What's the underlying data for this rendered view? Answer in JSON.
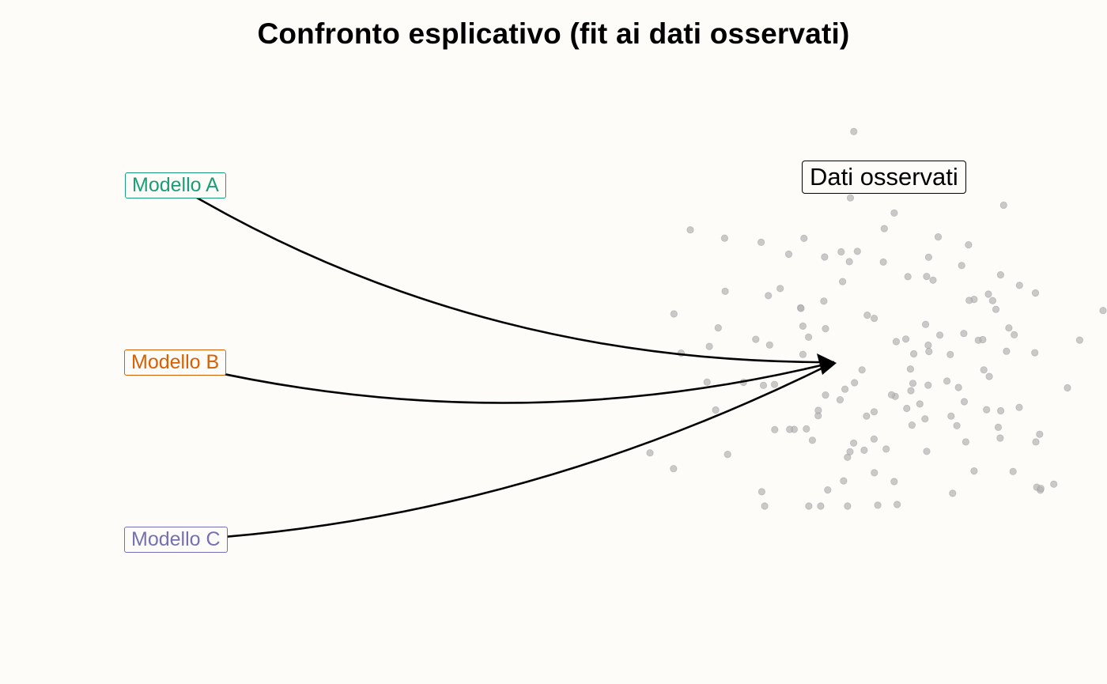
{
  "title": "Confronto esplicativo (fit ai dati osservati)",
  "models": [
    {
      "id": "a",
      "label": "Modello A",
      "color": "#1b9e77"
    },
    {
      "id": "b",
      "label": "Modello B",
      "color": "#d95f02"
    },
    {
      "id": "c",
      "label": "Modello C",
      "color": "#7570b3"
    }
  ],
  "observed": {
    "label": "Dati osservati",
    "point_color": "#b3b3b3",
    "point_count": 140
  },
  "arrow_color": "#000000"
}
